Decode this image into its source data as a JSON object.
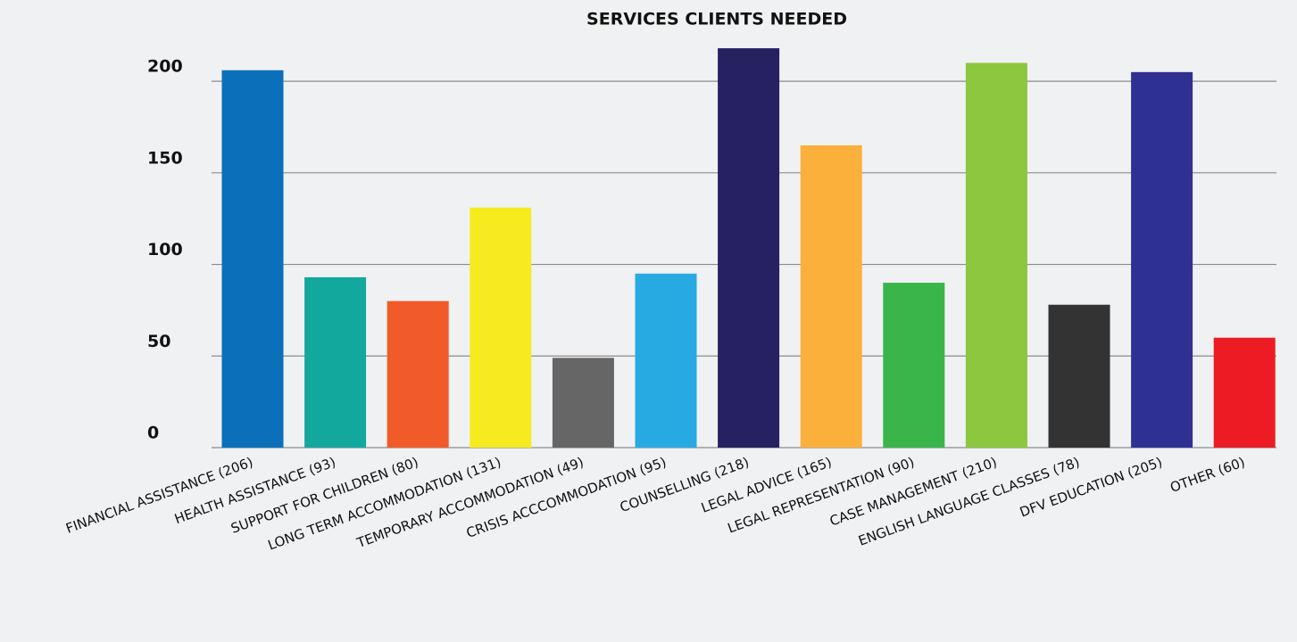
{
  "chart_data": {
    "type": "bar",
    "title": "SERVICES CLIENTS NEEDED",
    "categories": [
      "FINANCIAL ASSISTANCE (206)",
      "HEALTH ASSISTANCE (93)",
      "SUPPORT FOR CHILDREN (80)",
      "LONG TERM ACCOMMODATION (131)",
      "TEMPORARY ACCOMMODATION (49)",
      "CRISIS ACCCOMMODATION (95)",
      "COUNSELLING (218)",
      "LEGAL ADVICE (165)",
      "LEGAL REPRESENTATION (90)",
      "CASE MANAGEMENT (210)",
      "ENGLISH LANGUAGE CLASSES (78)",
      "DFV EDUCATION (205)",
      "OTHER (60)"
    ],
    "values": [
      206,
      93,
      80,
      131,
      49,
      95,
      218,
      165,
      90,
      210,
      78,
      205,
      60
    ],
    "colors": [
      "#0b6fba",
      "#13a89e",
      "#f15a29",
      "#f5eb1e",
      "#666666",
      "#27aae1",
      "#262262",
      "#fbb03b",
      "#39b54a",
      "#8dc63f",
      "#333333",
      "#2e3192",
      "#ed1c24"
    ],
    "ylim": [
      0,
      220
    ],
    "yticks": [
      0,
      50,
      100,
      150,
      200
    ],
    "grid": true
  }
}
